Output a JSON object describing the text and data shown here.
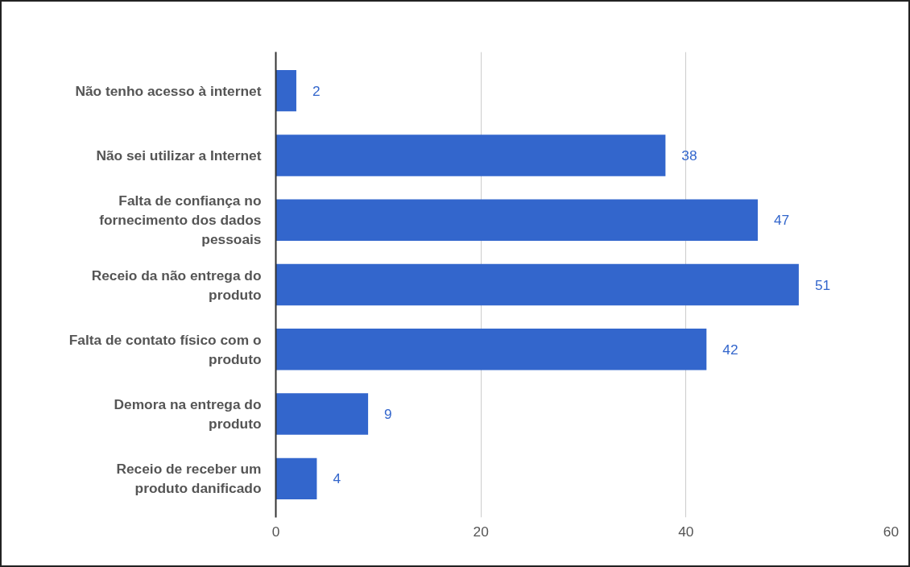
{
  "chart_data": {
    "type": "bar",
    "orientation": "horizontal",
    "categories": [
      "Não tenho acesso à internet",
      "Não sei utilizar a Internet",
      "Falta de confiança no\nfornecimento dos dados\npessoais",
      "Receio da não entrega do\nproduto",
      "Falta de contato físico com o\nproduto",
      "Demora na entrega do\nproduto",
      "Receio de receber um\nproduto danificado"
    ],
    "values": [
      2,
      38,
      47,
      51,
      42,
      9,
      4
    ],
    "color": "#3366cc",
    "xlim": [
      0,
      60
    ],
    "xticks": [
      0,
      20,
      40,
      60
    ],
    "grid": "x",
    "data_labels": true
  }
}
